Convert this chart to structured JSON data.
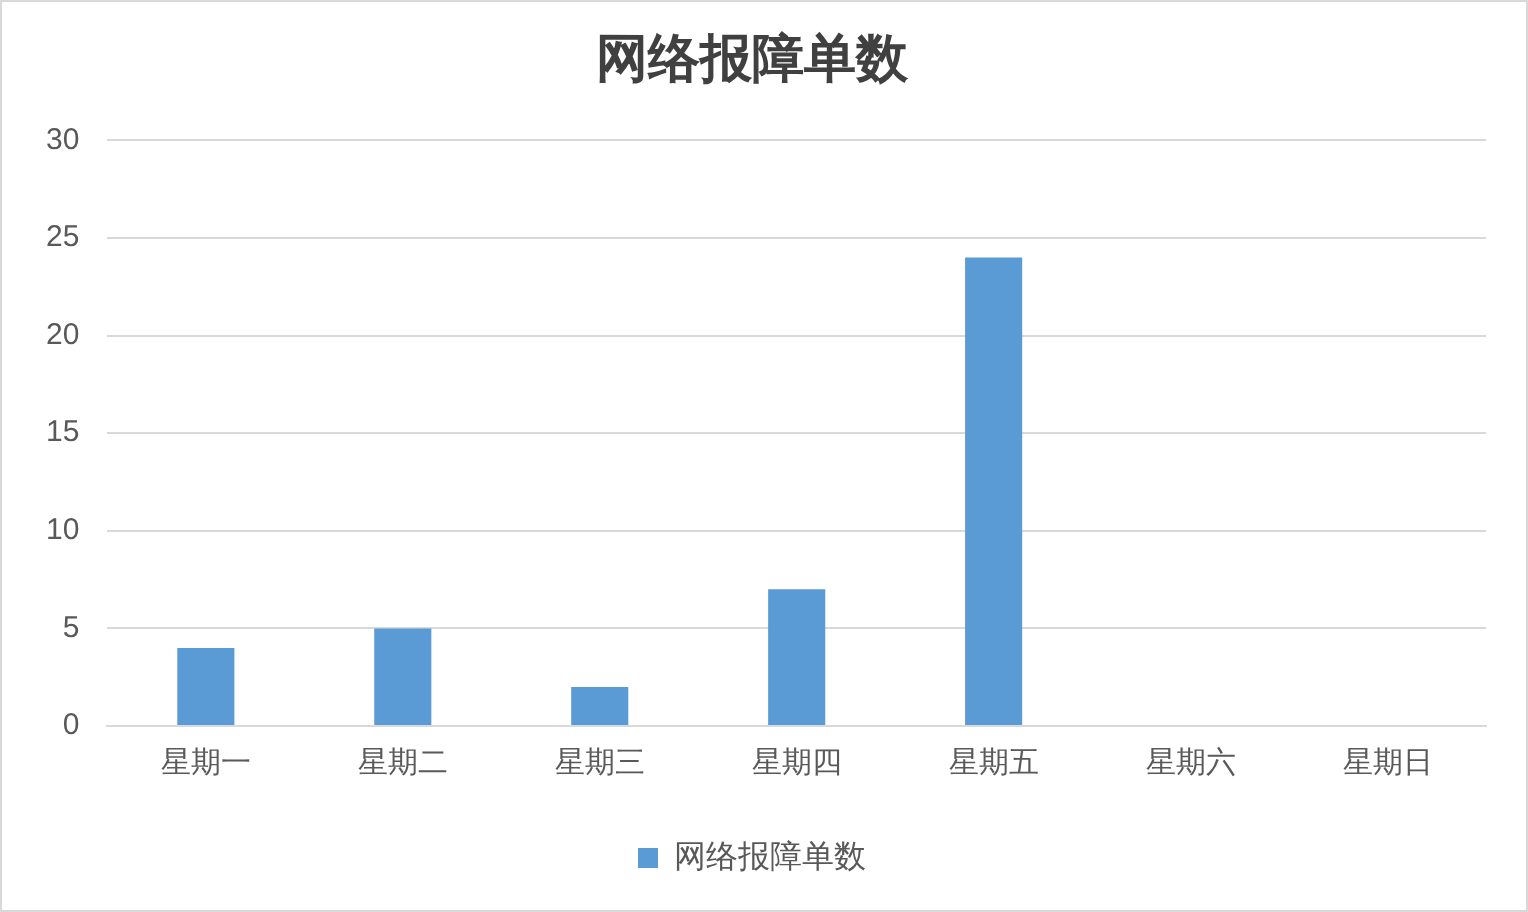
{
  "chart_data": {
    "type": "bar",
    "title": "网络报障单数",
    "categories": [
      "星期一",
      "星期二",
      "星期三",
      "星期四",
      "星期五",
      "星期六",
      "星期日"
    ],
    "series": [
      {
        "name": "网络报障单数",
        "color": "#5b9bd5",
        "values": [
          4,
          5,
          2,
          7,
          24,
          0,
          0
        ]
      }
    ],
    "ylim": [
      0,
      30
    ],
    "yticks": [
      0,
      5,
      10,
      15,
      20,
      25,
      30
    ],
    "grid": "y",
    "legend": "bottom"
  }
}
